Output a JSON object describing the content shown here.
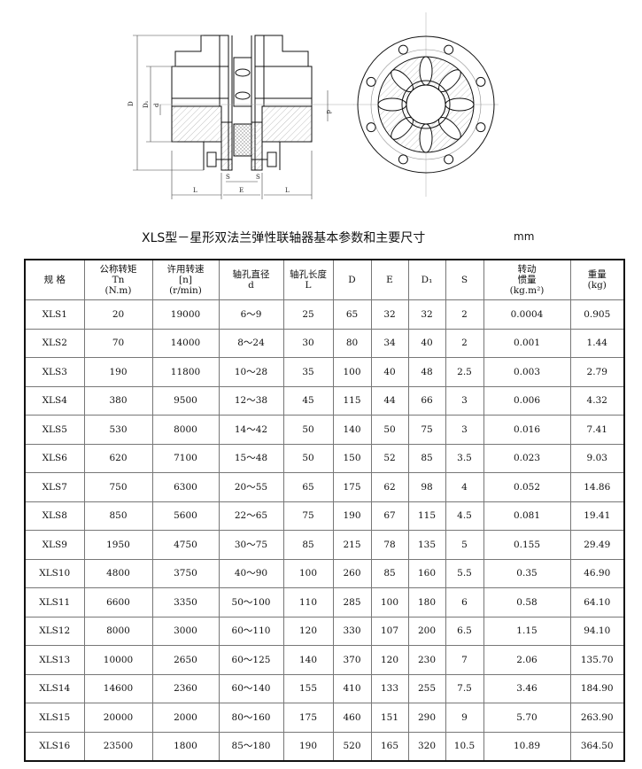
{
  "drawing": {
    "labels": {
      "D": "D",
      "D1": "D₁",
      "d": "d",
      "L": "L",
      "S": "S",
      "E": "E"
    }
  },
  "title": "XLS型－星形双法兰弹性联轴器基本参数和主要尺寸",
  "unit": "mm",
  "table": {
    "headers": [
      {
        "l1": "规 格",
        "l2": "",
        "l3": ""
      },
      {
        "l1": "公称转矩",
        "l2": "Tn",
        "l3": "(N.m)"
      },
      {
        "l1": "许用转速",
        "l2": "[n]",
        "l3": "(r/min)"
      },
      {
        "l1": "轴孔直径",
        "l2": "d",
        "l3": ""
      },
      {
        "l1": "轴孔长度",
        "l2": "L",
        "l3": ""
      },
      {
        "l1": "D",
        "l2": "",
        "l3": ""
      },
      {
        "l1": "E",
        "l2": "",
        "l3": ""
      },
      {
        "l1": "D₁",
        "l2": "",
        "l3": ""
      },
      {
        "l1": "S",
        "l2": "",
        "l3": ""
      },
      {
        "l1": "转动",
        "l2": "惯量",
        "l3": "(kg.m²)"
      },
      {
        "l1": "重量",
        "l2": "",
        "l3": "(kg)"
      }
    ],
    "rows": [
      [
        "XLS1",
        "20",
        "19000",
        "6～9",
        "25",
        "65",
        "32",
        "32",
        "2",
        "0.0004",
        "0.905"
      ],
      [
        "XLS2",
        "70",
        "14000",
        "8～24",
        "30",
        "80",
        "34",
        "40",
        "2",
        "0.001",
        "1.44"
      ],
      [
        "XLS3",
        "190",
        "11800",
        "10～28",
        "35",
        "100",
        "40",
        "48",
        "2.5",
        "0.003",
        "2.79"
      ],
      [
        "XLS4",
        "380",
        "9500",
        "12～38",
        "45",
        "115",
        "44",
        "66",
        "3",
        "0.006",
        "4.32"
      ],
      [
        "XLS5",
        "530",
        "8000",
        "14～42",
        "50",
        "140",
        "50",
        "75",
        "3",
        "0.016",
        "7.41"
      ],
      [
        "XLS6",
        "620",
        "7100",
        "15～48",
        "50",
        "150",
        "52",
        "85",
        "3.5",
        "0.023",
        "9.03"
      ],
      [
        "XLS7",
        "750",
        "6300",
        "20～55",
        "65",
        "175",
        "62",
        "98",
        "4",
        "0.052",
        "14.86"
      ],
      [
        "XLS8",
        "850",
        "5600",
        "22～65",
        "75",
        "190",
        "67",
        "115",
        "4.5",
        "0.081",
        "19.41"
      ],
      [
        "XLS9",
        "1950",
        "4750",
        "30～75",
        "85",
        "215",
        "78",
        "135",
        "5",
        "0.155",
        "29.49"
      ],
      [
        "XLS10",
        "4800",
        "3750",
        "40～90",
        "100",
        "260",
        "85",
        "160",
        "5.5",
        "0.35",
        "46.90"
      ],
      [
        "XLS11",
        "6600",
        "3350",
        "50～100",
        "110",
        "285",
        "100",
        "180",
        "6",
        "0.58",
        "64.10"
      ],
      [
        "XLS12",
        "8000",
        "3000",
        "60～110",
        "120",
        "330",
        "107",
        "200",
        "6.5",
        "1.15",
        "94.10"
      ],
      [
        "XLS13",
        "10000",
        "2650",
        "60～125",
        "140",
        "370",
        "120",
        "230",
        "7",
        "2.06",
        "135.70"
      ],
      [
        "XLS14",
        "14600",
        "2360",
        "60～140",
        "155",
        "410",
        "133",
        "255",
        "7.5",
        "3.46",
        "184.90"
      ],
      [
        "XLS15",
        "20000",
        "2000",
        "80～160",
        "175",
        "460",
        "151",
        "290",
        "9",
        "5.70",
        "263.90"
      ],
      [
        "XLS16",
        "23500",
        "1800",
        "85～180",
        "190",
        "520",
        "165",
        "320",
        "10.5",
        "10.89",
        "364.50"
      ]
    ]
  }
}
